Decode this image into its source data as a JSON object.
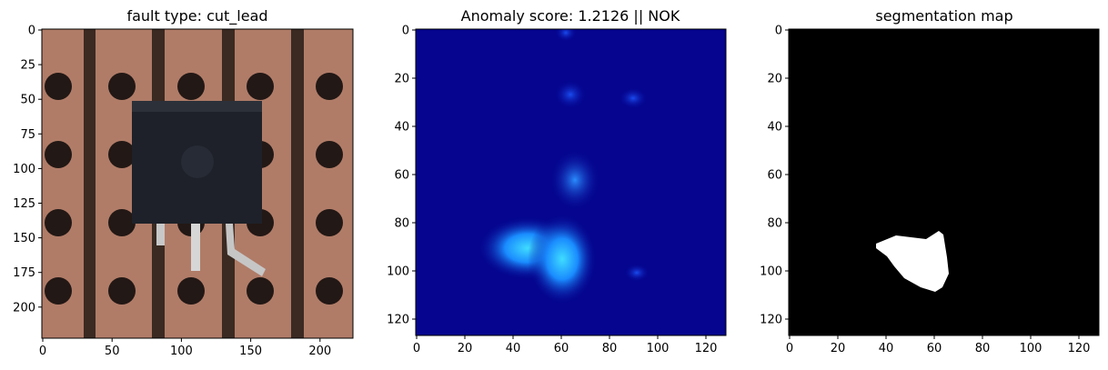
{
  "panels": [
    {
      "title": "fault type: cut_lead",
      "kind": "photo",
      "yticks": [
        "0",
        "25",
        "50",
        "75",
        "100",
        "125",
        "150",
        "175",
        "200"
      ],
      "xticks": [
        "0",
        "50",
        "100",
        "150",
        "200"
      ],
      "ytick_values": [
        0,
        25,
        50,
        75,
        100,
        125,
        150,
        175,
        200
      ],
      "xtick_values": [
        0,
        50,
        100,
        150,
        200
      ],
      "extent": [
        0,
        224
      ]
    },
    {
      "title": "Anomaly score: 1.2126 || NOK",
      "kind": "heatmap",
      "yticks": [
        "0",
        "20",
        "40",
        "60",
        "80",
        "100",
        "120"
      ],
      "xticks": [
        "0",
        "20",
        "40",
        "60",
        "80",
        "100",
        "120"
      ],
      "ytick_values": [
        0,
        20,
        40,
        60,
        80,
        100,
        120
      ],
      "xtick_values": [
        0,
        20,
        40,
        60,
        80,
        100,
        120
      ],
      "extent": [
        0,
        128
      ]
    },
    {
      "title": "segmentation map",
      "kind": "mask",
      "yticks": [
        "0",
        "20",
        "40",
        "60",
        "80",
        "100",
        "120"
      ],
      "xticks": [
        "0",
        "20",
        "40",
        "60",
        "80",
        "100",
        "120"
      ],
      "ytick_values": [
        0,
        20,
        40,
        60,
        80,
        100,
        120
      ],
      "xtick_values": [
        0,
        20,
        40,
        60,
        80,
        100,
        120
      ],
      "extent": [
        0,
        128
      ]
    }
  ],
  "colors": {
    "pcb": "#b07c68",
    "trace": "#3a2a22",
    "hole": "#221815",
    "component": "#1e2129",
    "heat_bg": "#05058f",
    "heat_hot": "#22ccff",
    "mask_bg": "#000000",
    "mask_fg": "#ffffff"
  }
}
